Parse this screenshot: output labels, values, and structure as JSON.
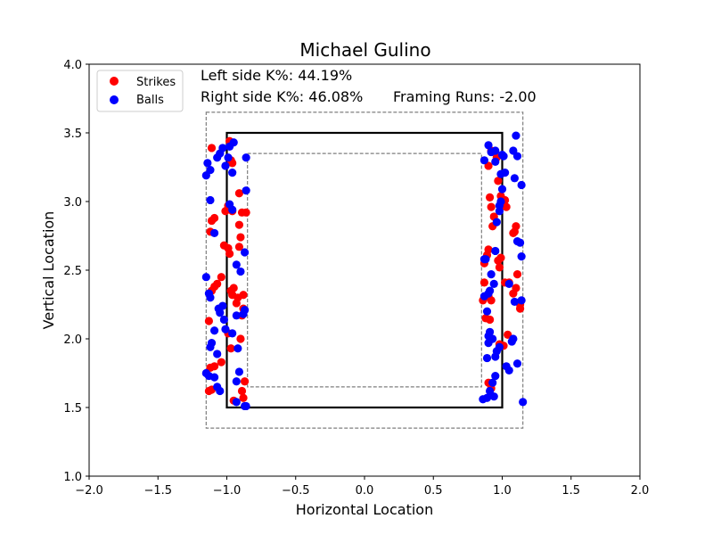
{
  "chart_data": {
    "type": "scatter",
    "title": "Michael Gulino",
    "xlabel": "Horizontal Location",
    "ylabel": "Vertical Location",
    "xlim": [
      -2.0,
      2.0
    ],
    "ylim": [
      1.0,
      4.0
    ],
    "xticks": [
      "−2.0",
      "−1.5",
      "−1.0",
      "−0.5",
      "0.0",
      "0.5",
      "1.0",
      "1.5",
      "2.0"
    ],
    "yticks": [
      "1.0",
      "1.5",
      "2.0",
      "2.5",
      "3.0",
      "3.5",
      "4.0"
    ],
    "xtick_values": [
      -2.0,
      -1.5,
      -1.0,
      -0.5,
      0.0,
      0.5,
      1.0,
      1.5,
      2.0
    ],
    "ytick_values": [
      1.0,
      1.5,
      2.0,
      2.5,
      3.0,
      3.5,
      4.0
    ],
    "grid": false,
    "legend_position": "upper-left",
    "annotations": {
      "left_k": "Left side K%: 44.19%",
      "right_k": "Right side K%: 46.08%",
      "framing": "Framing Runs: -2.00"
    },
    "zones": {
      "strike_zone": {
        "x": [
          -1.0,
          1.0
        ],
        "y": [
          1.5,
          3.5
        ]
      },
      "outer_shadow": {
        "x": [
          -1.15,
          1.15
        ],
        "y": [
          1.35,
          3.65
        ]
      },
      "inner_shadow": {
        "x": [
          -0.85,
          0.85
        ],
        "y": [
          1.65,
          3.35
        ]
      }
    },
    "colors": {
      "Strikes": "#ff0000",
      "Balls": "#0000ff"
    },
    "series": [
      {
        "name": "Strikes",
        "points": [
          [
            -1.11,
            3.39
          ],
          [
            -1.12,
            2.78
          ],
          [
            -1.11,
            2.86
          ],
          [
            -1.09,
            2.88
          ],
          [
            -1.13,
            2.13
          ],
          [
            -1.11,
            2.35
          ],
          [
            -1.09,
            2.38
          ],
          [
            -1.07,
            2.4
          ],
          [
            -1.12,
            1.79
          ],
          [
            -1.09,
            1.8
          ],
          [
            -1.04,
            1.83
          ],
          [
            -1.13,
            1.62
          ],
          [
            -1.11,
            1.63
          ],
          [
            -1.04,
            2.45
          ],
          [
            -1.02,
            2.68
          ],
          [
            -0.99,
            2.66
          ],
          [
            -0.98,
            2.62
          ],
          [
            -0.97,
            3.3
          ],
          [
            -0.98,
            3.44
          ],
          [
            -0.96,
            3.28
          ],
          [
            -1.01,
            2.93
          ],
          [
            -0.99,
            2.97
          ],
          [
            -0.96,
            2.93
          ],
          [
            -0.96,
            2.32
          ],
          [
            -0.97,
            2.35
          ],
          [
            -0.95,
            2.37
          ],
          [
            -0.92,
            2.3
          ],
          [
            -0.91,
            3.06
          ],
          [
            -0.89,
            2.92
          ],
          [
            -0.86,
            2.92
          ],
          [
            -0.91,
            2.83
          ],
          [
            -0.9,
            2.74
          ],
          [
            -0.91,
            2.67
          ],
          [
            -0.93,
            2.26
          ],
          [
            -0.88,
            2.32
          ],
          [
            -0.88,
            2.22
          ],
          [
            -0.89,
            2.17
          ],
          [
            -0.97,
            1.93
          ],
          [
            -0.9,
            2.0
          ],
          [
            -0.95,
            1.55
          ],
          [
            -0.89,
            1.62
          ],
          [
            -0.88,
            1.57
          ],
          [
            -0.87,
            1.69
          ],
          [
            -0.99,
            2.04
          ],
          [
            0.92,
            3.37
          ],
          [
            0.96,
            3.32
          ],
          [
            0.9,
            3.26
          ],
          [
            0.91,
            3.03
          ],
          [
            0.92,
            2.96
          ],
          [
            0.94,
            2.89
          ],
          [
            0.93,
            2.82
          ],
          [
            0.89,
            2.61
          ],
          [
            0.9,
            2.65
          ],
          [
            0.87,
            2.55
          ],
          [
            0.87,
            2.41
          ],
          [
            0.9,
            2.31
          ],
          [
            0.92,
            2.28
          ],
          [
            0.86,
            2.28
          ],
          [
            0.88,
            2.15
          ],
          [
            0.91,
            2.14
          ],
          [
            0.9,
            1.68
          ],
          [
            0.92,
            1.64
          ],
          [
            0.97,
            3.15
          ],
          [
            0.99,
            3.04
          ],
          [
            1.01,
            3.0
          ],
          [
            1.03,
            2.96
          ],
          [
            1.02,
            3.01
          ],
          [
            0.98,
            2.52
          ],
          [
            0.97,
            2.57
          ],
          [
            0.99,
            2.59
          ],
          [
            1.02,
            2.41
          ],
          [
            1.05,
            2.41
          ],
          [
            1.08,
            2.77
          ],
          [
            1.1,
            2.82
          ],
          [
            1.09,
            2.78
          ],
          [
            1.11,
            2.47
          ],
          [
            1.1,
            2.37
          ],
          [
            1.08,
            2.33
          ],
          [
            1.13,
            2.22
          ],
          [
            1.13,
            2.25
          ],
          [
            1.04,
            2.03
          ],
          [
            1.01,
            1.95
          ],
          [
            0.98,
            1.96
          ]
        ]
      },
      {
        "name": "Balls",
        "points": [
          [
            -1.14,
            3.28
          ],
          [
            -1.15,
            3.19
          ],
          [
            -1.12,
            3.23
          ],
          [
            -1.12,
            3.01
          ],
          [
            -1.09,
            2.77
          ],
          [
            -1.15,
            2.45
          ],
          [
            -1.13,
            2.33
          ],
          [
            -1.12,
            2.3
          ],
          [
            -1.11,
            1.97
          ],
          [
            -1.12,
            1.94
          ],
          [
            -1.07,
            1.89
          ],
          [
            -1.13,
            1.73
          ],
          [
            -1.15,
            1.75
          ],
          [
            -1.09,
            1.72
          ],
          [
            -1.07,
            1.65
          ],
          [
            -1.09,
            2.06
          ],
          [
            -1.06,
            2.22
          ],
          [
            -1.05,
            2.19
          ],
          [
            -1.03,
            2.24
          ],
          [
            -1.02,
            2.14
          ],
          [
            -1.01,
            2.07
          ],
          [
            -1.07,
            3.32
          ],
          [
            -1.05,
            3.35
          ],
          [
            -1.03,
            3.39
          ],
          [
            -0.98,
            3.4
          ],
          [
            -1.01,
            3.26
          ],
          [
            -0.99,
            3.32
          ],
          [
            -0.95,
            3.43
          ],
          [
            -0.96,
            3.21
          ],
          [
            -0.98,
            2.98
          ],
          [
            -0.96,
            2.94
          ],
          [
            -0.93,
            2.54
          ],
          [
            -0.9,
            2.49
          ],
          [
            -0.87,
            2.63
          ],
          [
            -0.86,
            3.08
          ],
          [
            -0.86,
            3.32
          ],
          [
            -0.93,
            2.17
          ],
          [
            -0.87,
            2.21
          ],
          [
            -0.88,
            2.18
          ],
          [
            -0.96,
            2.04
          ],
          [
            -0.92,
            1.93
          ],
          [
            -0.91,
            1.76
          ],
          [
            -0.93,
            1.69
          ],
          [
            -0.93,
            1.54
          ],
          [
            -0.87,
            1.51
          ],
          [
            -0.86,
            1.51
          ],
          [
            -1.05,
            1.62
          ],
          [
            0.9,
            3.41
          ],
          [
            0.92,
            3.36
          ],
          [
            0.87,
            3.3
          ],
          [
            0.95,
            3.37
          ],
          [
            0.95,
            3.29
          ],
          [
            1.0,
            3.34
          ],
          [
            0.99,
            3.2
          ],
          [
            1.02,
            3.21
          ],
          [
            1.01,
            3.33
          ],
          [
            1.1,
            3.48
          ],
          [
            1.11,
            3.33
          ],
          [
            1.08,
            3.37
          ],
          [
            1.14,
            3.12
          ],
          [
            1.09,
            3.17
          ],
          [
            1.0,
            3.09
          ],
          [
            0.99,
            3.0
          ],
          [
            0.98,
            2.93
          ],
          [
            0.98,
            2.97
          ],
          [
            0.96,
            2.85
          ],
          [
            0.88,
            2.58
          ],
          [
            0.87,
            2.58
          ],
          [
            0.95,
            2.64
          ],
          [
            0.92,
            2.47
          ],
          [
            0.94,
            2.4
          ],
          [
            0.91,
            2.35
          ],
          [
            0.87,
            2.31
          ],
          [
            0.9,
            2.33
          ],
          [
            0.89,
            2.2
          ],
          [
            0.91,
            2.05
          ],
          [
            0.9,
            2.02
          ],
          [
            0.93,
            2.0
          ],
          [
            0.9,
            1.97
          ],
          [
            0.96,
            1.91
          ],
          [
            0.95,
            1.87
          ],
          [
            0.89,
            1.86
          ],
          [
            0.98,
            1.94
          ],
          [
            0.95,
            1.73
          ],
          [
            0.93,
            1.68
          ],
          [
            0.91,
            1.62
          ],
          [
            0.94,
            1.58
          ],
          [
            0.89,
            1.57
          ],
          [
            0.86,
            1.56
          ],
          [
            1.03,
            1.8
          ],
          [
            1.05,
            1.77
          ],
          [
            1.07,
            1.98
          ],
          [
            1.08,
            2.0
          ],
          [
            1.09,
            2.27
          ],
          [
            1.14,
            2.28
          ],
          [
            1.05,
            2.4
          ],
          [
            1.11,
            2.71
          ],
          [
            1.13,
            2.7
          ],
          [
            1.14,
            2.6
          ],
          [
            1.11,
            1.82
          ],
          [
            1.15,
            1.54
          ]
        ]
      }
    ]
  }
}
